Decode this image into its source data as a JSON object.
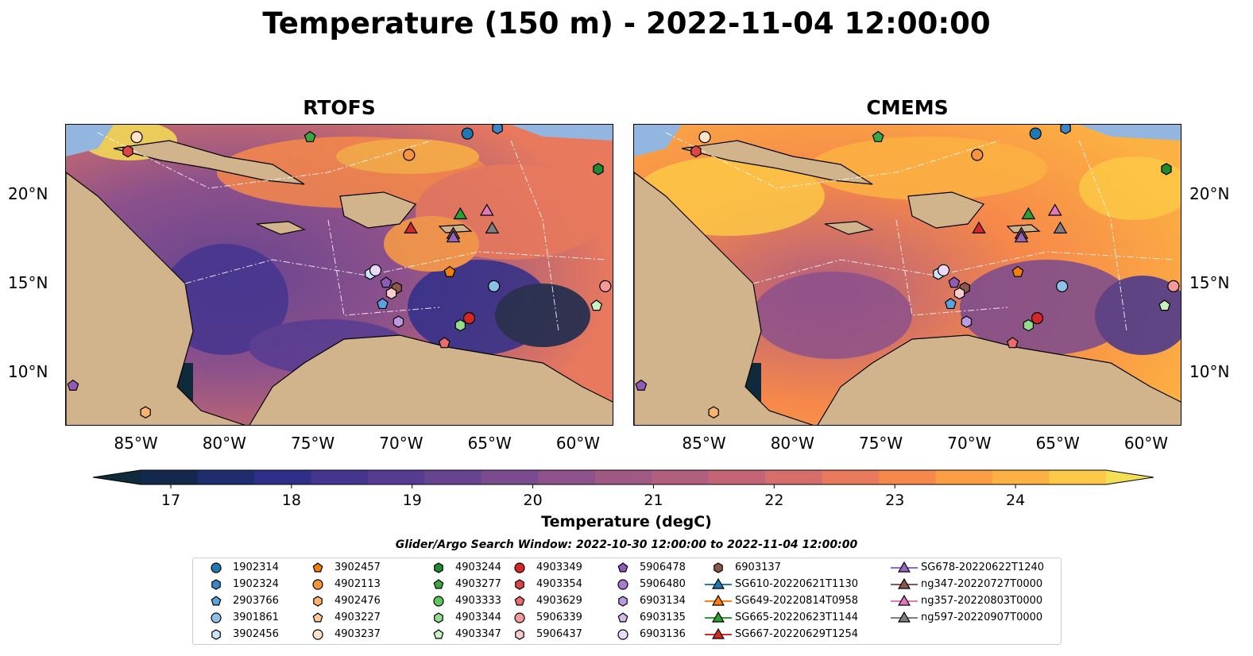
{
  "title": "Temperature (150 m) - 2022-11-04 12:00:00",
  "panels": [
    {
      "title": "RTOFS"
    },
    {
      "title": "CMEMS"
    }
  ],
  "axes": {
    "lon_ticks": [
      "85°W",
      "80°W",
      "75°W",
      "70°W",
      "65°W",
      "60°W"
    ],
    "lat_ticks": [
      "20°N",
      "15°N",
      "10°N"
    ],
    "lon_range": [
      -89,
      -58
    ],
    "lat_range": [
      7,
      24
    ]
  },
  "colorbar": {
    "label": "Temperature (degC)",
    "ticks": [
      "17",
      "18",
      "19",
      "20",
      "21",
      "22",
      "23",
      "24"
    ],
    "range": [
      16.75,
      24.75
    ],
    "colors": [
      "#0f2a3b",
      "#13284d",
      "#1d2d6e",
      "#2f2f8a",
      "#45358f",
      "#563c91",
      "#674490",
      "#7a4b8f",
      "#8d518b",
      "#a05885",
      "#b25e7f",
      "#c46577",
      "#d66e6c",
      "#e8795d",
      "#f6884a",
      "#fb9d43",
      "#fcb242",
      "#fdc845",
      "#f4de55"
    ]
  },
  "legend": {
    "title": "Glider/Argo Search Window: 2022-10-30 12:00:00 to 2022-11-04 12:00:00",
    "columns": [
      [
        {
          "label": "1902314",
          "marker": "circle",
          "color": "#1f77b4"
        },
        {
          "label": "1902324",
          "marker": "hexagon",
          "color": "#3a86c8"
        },
        {
          "label": "2903766",
          "marker": "pentagon",
          "color": "#5ba3df"
        },
        {
          "label": "3901861",
          "marker": "circle",
          "color": "#8ec1e8"
        },
        {
          "label": "3902456",
          "marker": "hexagon",
          "color": "#cde4f5"
        }
      ],
      [
        {
          "label": "3902457",
          "marker": "pentagon",
          "color": "#f07f0e"
        },
        {
          "label": "4902113",
          "marker": "circle",
          "color": "#f8953a"
        },
        {
          "label": "4902476",
          "marker": "hexagon",
          "color": "#fbb36e"
        },
        {
          "label": "4903227",
          "marker": "pentagon",
          "color": "#fdc99a"
        },
        {
          "label": "4903237",
          "marker": "circle",
          "color": "#fee3c9"
        }
      ],
      [
        {
          "label": "4903244",
          "marker": "hexagon",
          "color": "#1f8a2e"
        },
        {
          "label": "4903277",
          "marker": "pentagon",
          "color": "#3aa83e"
        },
        {
          "label": "4903333",
          "marker": "circle",
          "color": "#5fc65c"
        },
        {
          "label": "4903344",
          "marker": "hexagon",
          "color": "#93dc8b"
        },
        {
          "label": "4903347",
          "marker": "pentagon",
          "color": "#c9f0c0"
        }
      ],
      [
        {
          "label": "4903349",
          "marker": "circle",
          "color": "#d62728"
        },
        {
          "label": "4903354",
          "marker": "hexagon",
          "color": "#e04545"
        },
        {
          "label": "4903629",
          "marker": "pentagon",
          "color": "#ec6b6b"
        },
        {
          "label": "5906339",
          "marker": "circle",
          "color": "#f59a9a"
        },
        {
          "label": "5906437",
          "marker": "hexagon",
          "color": "#fbcaca"
        }
      ],
      [
        {
          "label": "5906478",
          "marker": "pentagon",
          "color": "#8e5cb8"
        },
        {
          "label": "5906480",
          "marker": "circle",
          "color": "#a57cd0"
        },
        {
          "label": "6903134",
          "marker": "hexagon",
          "color": "#bb9ae0"
        },
        {
          "label": "6903135",
          "marker": "pentagon",
          "color": "#d3bbee"
        },
        {
          "label": "6903136",
          "marker": "circle",
          "color": "#ead9f8"
        }
      ],
      [
        {
          "label": "6903137",
          "marker": "hexagon",
          "color": "#8c564b"
        },
        {
          "label": "SG610-20220621T1130",
          "marker": "triangle-line",
          "color": "#1f77b4"
        },
        {
          "label": "SG649-20220814T0958",
          "marker": "triangle-line",
          "color": "#ff7f0e"
        },
        {
          "label": "SG665-20220623T1144",
          "marker": "triangle-line",
          "color": "#2ca02c"
        },
        {
          "label": "SG667-20220629T1254",
          "marker": "triangle-line",
          "color": "#d62728"
        }
      ],
      [
        {
          "label": "SG678-20220622T1240",
          "marker": "triangle-line",
          "color": "#9467bd"
        },
        {
          "label": "ng347-20220727T0000",
          "marker": "triangle-line",
          "color": "#8c564b"
        },
        {
          "label": "ng357-20220803T0000",
          "marker": "triangle-line",
          "color": "#e377c2"
        },
        {
          "label": "ng597-20220907T0000",
          "marker": "triangle-line",
          "color": "#7f7f7f"
        }
      ]
    ]
  },
  "markers": [
    {
      "lon": -85.0,
      "lat": 23.3,
      "marker": "circle",
      "color": "#fee3c9"
    },
    {
      "lon": -85.5,
      "lat": 22.5,
      "marker": "hexagon",
      "color": "#e04545"
    },
    {
      "lon": -75.2,
      "lat": 23.3,
      "marker": "pentagon",
      "color": "#3aa83e"
    },
    {
      "lon": -66.3,
      "lat": 23.5,
      "marker": "circle",
      "color": "#1f77b4"
    },
    {
      "lon": -64.6,
      "lat": 23.8,
      "marker": "hexagon",
      "color": "#3a86c8"
    },
    {
      "lon": -69.6,
      "lat": 22.3,
      "marker": "circle",
      "color": "#f8953a"
    },
    {
      "lon": -58.9,
      "lat": 21.5,
      "marker": "hexagon",
      "color": "#1f8a2e"
    },
    {
      "lon": -66.7,
      "lat": 18.9,
      "marker": "triangle",
      "color": "#2ca02c"
    },
    {
      "lon": -65.2,
      "lat": 19.1,
      "marker": "triangle",
      "color": "#e377c2"
    },
    {
      "lon": -69.5,
      "lat": 18.1,
      "marker": "triangle",
      "color": "#d62728"
    },
    {
      "lon": -67.1,
      "lat": 17.8,
      "marker": "triangle",
      "color": "#8c564b"
    },
    {
      "lon": -67.1,
      "lat": 17.6,
      "marker": "triangle",
      "color": "#9467bd"
    },
    {
      "lon": -64.9,
      "lat": 18.1,
      "marker": "triangle",
      "color": "#7f7f7f"
    },
    {
      "lon": -67.3,
      "lat": 15.7,
      "marker": "pentagon",
      "color": "#f07f0e"
    },
    {
      "lon": -71.8,
      "lat": 15.6,
      "marker": "hexagon",
      "color": "#cde4f5"
    },
    {
      "lon": -71.5,
      "lat": 15.8,
      "marker": "circle",
      "color": "#ead9f8"
    },
    {
      "lon": -64.8,
      "lat": 14.9,
      "marker": "circle",
      "color": "#8ec1e8"
    },
    {
      "lon": -70.9,
      "lat": 15.1,
      "marker": "pentagon",
      "color": "#8e5cb8"
    },
    {
      "lon": -70.3,
      "lat": 14.8,
      "marker": "hexagon",
      "color": "#8c564b"
    },
    {
      "lon": -70.6,
      "lat": 14.5,
      "marker": "hexagon",
      "color": "#fbcaca"
    },
    {
      "lon": -71.1,
      "lat": 13.9,
      "marker": "pentagon",
      "color": "#5ba3df"
    },
    {
      "lon": -58.5,
      "lat": 14.9,
      "marker": "circle",
      "color": "#f59a9a"
    },
    {
      "lon": -59.0,
      "lat": 13.8,
      "marker": "pentagon",
      "color": "#c9f0c0"
    },
    {
      "lon": -70.2,
      "lat": 12.9,
      "marker": "hexagon",
      "color": "#bb9ae0"
    },
    {
      "lon": -66.2,
      "lat": 13.1,
      "marker": "circle",
      "color": "#d62728"
    },
    {
      "lon": -66.7,
      "lat": 12.7,
      "marker": "hexagon",
      "color": "#93dc8b"
    },
    {
      "lon": -67.6,
      "lat": 11.7,
      "marker": "pentagon",
      "color": "#ec6b6b"
    },
    {
      "lon": -88.6,
      "lat": 9.3,
      "marker": "pentagon",
      "color": "#8e5cb8"
    },
    {
      "lon": -84.5,
      "lat": 7.8,
      "marker": "hexagon",
      "color": "#fbb36e"
    }
  ]
}
